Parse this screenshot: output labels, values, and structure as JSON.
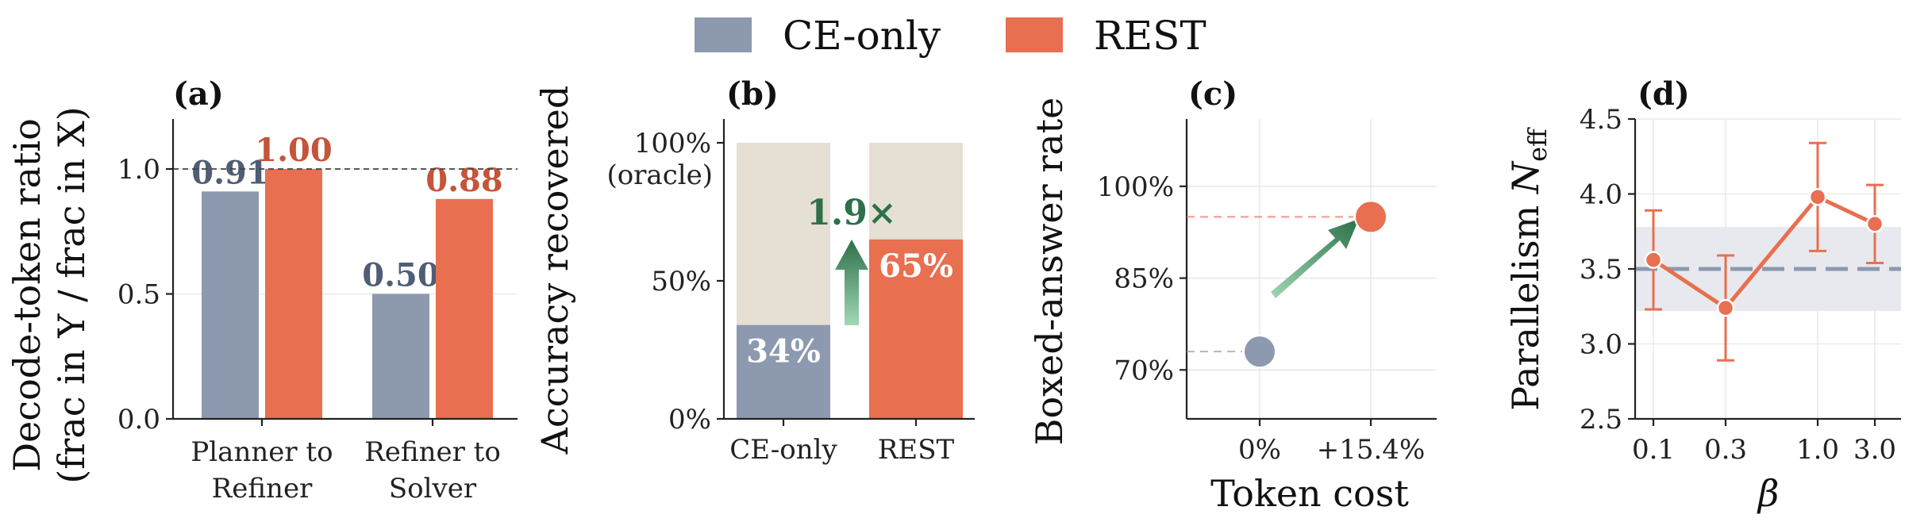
{
  "colors": {
    "ce_only": "#8c99ae",
    "rest": "#e86f50",
    "remaining": "#e6dfd3",
    "gain": "#2d7049",
    "band": "#e7e9ee",
    "ce_line": "#8c99ae",
    "label_ce": "#4f5d75",
    "label_rest": "#c4553a"
  },
  "legend": {
    "items": [
      {
        "label": "CE-only",
        "color_key": "ce_only"
      },
      {
        "label": "REST",
        "color_key": "rest"
      }
    ]
  },
  "chart_data": [
    {
      "panel": "(a)",
      "type": "bar",
      "ylabel_line1": "Decode-token ratio",
      "ylabel_line2": "(frac in Y / frac in X)",
      "categories": [
        [
          "Planner to",
          "Refiner"
        ],
        [
          "Refiner to",
          "Solver"
        ]
      ],
      "series": [
        {
          "name": "CE-only",
          "values": [
            0.91,
            0.5
          ],
          "labels": [
            "0.91",
            "0.50"
          ]
        },
        {
          "name": "REST",
          "values": [
            1.0,
            0.88
          ],
          "labels": [
            "1.00",
            "0.88"
          ]
        }
      ],
      "ylim": [
        0,
        1.2
      ],
      "yticks": [
        0,
        0.5,
        1.0
      ],
      "ytick_labels": [
        "0.0",
        "0.5",
        "1.0"
      ],
      "reference_line": 1.0,
      "grid": true
    },
    {
      "panel": "(b)",
      "type": "bar",
      "ylabel": "Accuracy recovered",
      "categories": [
        "CE-only",
        "REST"
      ],
      "values": [
        34,
        65
      ],
      "value_labels": [
        "34%",
        "65%"
      ],
      "total": 100,
      "ylim": [
        0,
        100
      ],
      "yticks": [
        0,
        50,
        100
      ],
      "ytick_labels": [
        "0%",
        "50%",
        "100%"
      ],
      "top_tick_sublabel": "(oracle)",
      "annotation": "1.9×"
    },
    {
      "panel": "(c)",
      "type": "scatter",
      "xlabel": "Token cost",
      "ylabel": "Boxed-answer rate",
      "x_categories": [
        "0%",
        "+15.4%"
      ],
      "points": [
        {
          "name": "CE-only",
          "x": "0%",
          "y": 73
        },
        {
          "name": "REST",
          "x": "+15.4%",
          "y": 95
        }
      ],
      "ylim": [
        62,
        111
      ],
      "yticks": [
        70,
        85,
        100
      ],
      "ytick_labels": [
        "70%",
        "85%",
        "100%"
      ],
      "grid": true
    },
    {
      "panel": "(d)",
      "type": "line",
      "xlabel": "β",
      "ylabel": "Parallelism",
      "ylabel_symbol": "N",
      "ylabel_subscript": "eff",
      "x": [
        "0.1",
        "0.3",
        "1.0",
        "3.0"
      ],
      "series": [
        {
          "name": "REST",
          "values": [
            3.56,
            3.24,
            3.98,
            3.8
          ],
          "err_low": [
            3.23,
            2.89,
            3.62,
            3.54
          ],
          "err_high": [
            3.89,
            3.59,
            4.34,
            4.06
          ]
        }
      ],
      "baseline": 3.5,
      "baseline_band": [
        3.22,
        3.78
      ],
      "ylim": [
        2.5,
        4.5
      ],
      "yticks": [
        2.5,
        3.0,
        3.5,
        4.0,
        4.5
      ],
      "ytick_labels": [
        "2.5",
        "3.0",
        "3.5",
        "4.0",
        "4.5"
      ],
      "grid": true
    }
  ]
}
